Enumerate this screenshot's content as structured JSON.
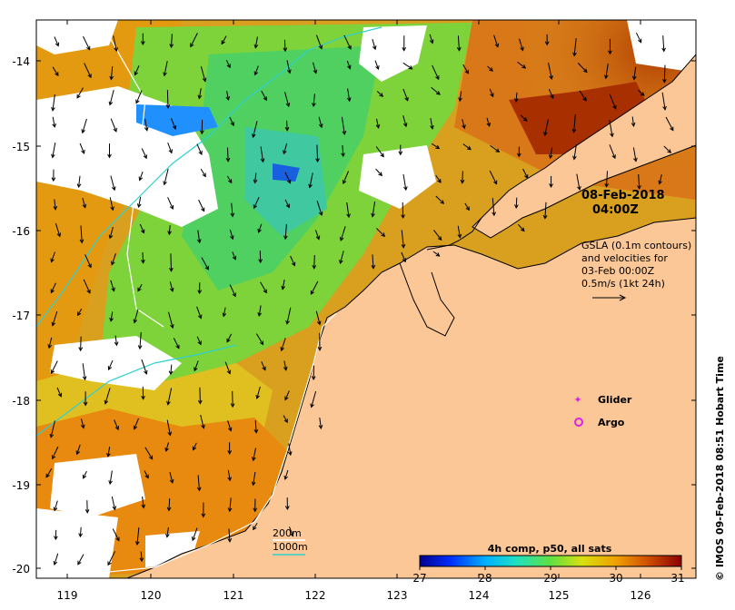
{
  "map": {
    "lon_labels": [
      "119",
      "120",
      "121",
      "122",
      "123",
      "124",
      "125",
      "126"
    ],
    "lat_labels": [
      "-14",
      "-15",
      "-16",
      "-17",
      "-18",
      "-19",
      "-20"
    ],
    "date_line1": "08-Feb-2018",
    "date_line2": "04:00Z",
    "gsla_lines": [
      "GSLA (0.1m contours)",
      "and velocities for",
      "03-Feb 00:00Z",
      "0.5m/s (1kt 24h)"
    ],
    "legend_glider": "Glider",
    "legend_argo": "Argo",
    "depth_200": "200m",
    "depth_1000": "1000m",
    "colorbar_title": "4h comp, p50, all sats",
    "colorbar_ticks": [
      "27",
      "28",
      "29",
      "30",
      "31"
    ],
    "credit": "© IMOS 09-Feb-2018 08:51 Hobart Time",
    "colors": {
      "land": "#fbc796",
      "glider": "#e020e0",
      "argo": "#e020e0",
      "isobath_200": "#ffffff",
      "isobath_1000": "#30d0d0"
    }
  }
}
